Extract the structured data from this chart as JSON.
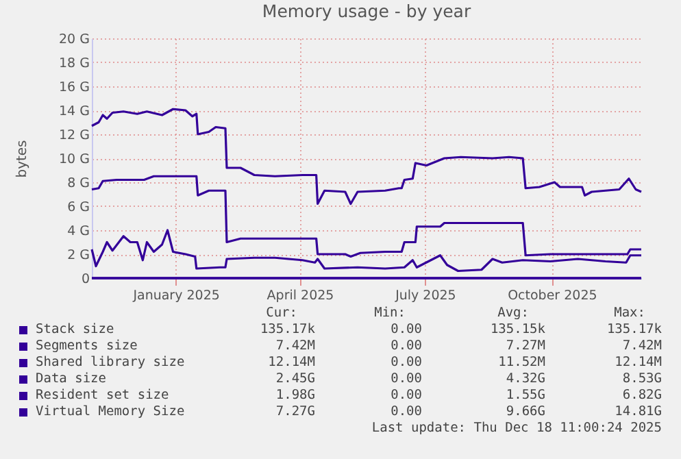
{
  "chart_data": {
    "type": "line",
    "title": "Memory usage - by year",
    "ylabel": "bytes",
    "xlim": [
      "2024-11-14",
      "2025-12-18"
    ],
    "xticks": [
      {
        "value": "2025-01-14",
        "label": "January 2025"
      },
      {
        "value": "2025-04-14",
        "label": "April 2025"
      },
      {
        "value": "2025-07-14",
        "label": "July 2025"
      },
      {
        "value": "2025-10-14",
        "label": "October 2025"
      }
    ],
    "ylim": [
      0,
      20
    ],
    "yticks": [
      0,
      {
        "value": 2,
        "label": "2 G"
      },
      {
        "value": 4,
        "label": "4 G"
      },
      {
        "value": 6,
        "label": "6 G"
      },
      {
        "value": 8,
        "label": "8 G"
      },
      {
        "value": 10,
        "label": "10 G"
      },
      {
        "value": 12,
        "label": "12 G"
      },
      {
        "value": 14,
        "label": "14 G"
      },
      {
        "value": 16,
        "label": "16 G"
      },
      {
        "value": 18,
        "label": "18 G"
      },
      {
        "value": 20,
        "label": "20 G"
      }
    ],
    "grid": true,
    "legend": "bottom",
    "series": [
      {
        "name": "Stack size",
        "color": "#330099",
        "x": [
          "2024-11-14",
          "2025-12-18"
        ],
        "values": [
          0,
          0
        ]
      },
      {
        "name": "Segments size",
        "color": "#330099",
        "x": [
          "2024-11-14",
          "2025-12-18"
        ],
        "values": [
          0,
          0
        ]
      },
      {
        "name": "Shared library size",
        "color": "#330099",
        "x": [
          "2024-11-14",
          "2025-12-18"
        ],
        "values": [
          0,
          0
        ]
      },
      {
        "name": "Data size",
        "color": "#330099",
        "x": [
          "2024-11-14",
          "2024-11-19",
          "2024-11-22",
          "2024-12-02",
          "2024-12-22",
          "2024-12-29",
          "2025-01-29",
          "2025-01-30",
          "2025-02-07",
          "2025-02-19",
          "2025-02-20",
          "2025-03-02",
          "2025-04-26",
          "2025-04-27",
          "2025-05-17",
          "2025-05-21",
          "2025-05-28",
          "2025-06-15",
          "2025-06-27",
          "2025-06-29",
          "2025-07-07",
          "2025-07-08",
          "2025-07-25",
          "2025-07-28",
          "2025-09-23",
          "2025-09-25",
          "2025-10-13",
          "2025-12-08",
          "2025-12-10",
          "2025-12-18"
        ],
        "values": [
          7.4,
          7.5,
          8.1,
          8.2,
          8.2,
          8.5,
          8.5,
          6.9,
          7.3,
          7.3,
          3.0,
          3.3,
          3.3,
          2.0,
          2.0,
          1.8,
          2.1,
          2.2,
          2.2,
          3.0,
          3.0,
          4.3,
          4.3,
          4.6,
          4.6,
          1.9,
          2.0,
          2.0,
          2.4,
          2.4
        ]
      },
      {
        "name": "Resident set size",
        "color": "#330099",
        "x": [
          "2024-11-14",
          "2024-11-17",
          "2024-11-22",
          "2024-11-25",
          "2024-11-29",
          "2024-12-07",
          "2024-12-12",
          "2024-12-17",
          "2024-12-21",
          "2024-12-24",
          "2024-12-29",
          "2025-01-04",
          "2025-01-08",
          "2025-01-12",
          "2025-01-21",
          "2025-01-28",
          "2025-01-29",
          "2025-02-15",
          "2025-02-19",
          "2025-02-20",
          "2025-03-12",
          "2025-03-27",
          "2025-04-16",
          "2025-04-25",
          "2025-04-27",
          "2025-05-02",
          "2025-05-26",
          "2025-06-15",
          "2025-06-29",
          "2025-07-05",
          "2025-07-08",
          "2025-07-25",
          "2025-07-30",
          "2025-08-07",
          "2025-08-24",
          "2025-09-01",
          "2025-09-08",
          "2025-09-23",
          "2025-10-13",
          "2025-11-02",
          "2025-11-22",
          "2025-12-07",
          "2025-12-10",
          "2025-12-18"
        ],
        "values": [
          2.4,
          1.0,
          2.2,
          3.0,
          2.3,
          3.5,
          3.0,
          3.0,
          1.5,
          3.0,
          2.2,
          2.8,
          4.0,
          2.2,
          2.0,
          1.8,
          0.8,
          0.9,
          0.9,
          1.6,
          1.7,
          1.7,
          1.5,
          1.3,
          1.6,
          0.8,
          0.9,
          0.8,
          0.9,
          1.5,
          0.9,
          1.9,
          1.1,
          0.6,
          0.7,
          1.6,
          1.3,
          1.5,
          1.4,
          1.6,
          1.4,
          1.3,
          1.9,
          1.9
        ]
      },
      {
        "name": "Virtual Memory Size",
        "color": "#330099",
        "x": [
          "2024-11-14",
          "2024-11-19",
          "2024-11-22",
          "2024-11-25",
          "2024-11-29",
          "2024-12-07",
          "2024-12-17",
          "2024-12-24",
          "2025-01-04",
          "2025-01-12",
          "2025-01-21",
          "2025-01-26",
          "2025-01-29",
          "2025-01-30",
          "2025-02-07",
          "2025-02-12",
          "2025-02-19",
          "2025-02-20",
          "2025-03-02",
          "2025-03-12",
          "2025-03-27",
          "2025-04-16",
          "2025-04-26",
          "2025-04-27",
          "2025-05-02",
          "2025-05-17",
          "2025-05-21",
          "2025-05-26",
          "2025-06-15",
          "2025-06-25",
          "2025-06-27",
          "2025-06-29",
          "2025-07-05",
          "2025-07-07",
          "2025-07-15",
          "2025-07-28",
          "2025-08-09",
          "2025-09-01",
          "2025-09-13",
          "2025-09-23",
          "2025-09-25",
          "2025-10-05",
          "2025-10-16",
          "2025-10-20",
          "2025-11-05",
          "2025-11-07",
          "2025-11-12",
          "2025-11-22",
          "2025-12-02",
          "2025-12-09",
          "2025-12-14",
          "2025-12-18"
        ],
        "values": [
          12.7,
          13.0,
          13.6,
          13.3,
          13.8,
          13.9,
          13.7,
          13.9,
          13.6,
          14.1,
          14.0,
          13.5,
          13.7,
          12.0,
          12.2,
          12.6,
          12.5,
          9.2,
          9.2,
          8.6,
          8.5,
          8.6,
          8.6,
          6.2,
          7.3,
          7.2,
          6.2,
          7.2,
          7.3,
          7.5,
          7.5,
          8.2,
          8.3,
          9.6,
          9.4,
          10.0,
          10.1,
          10.0,
          10.1,
          10.0,
          7.5,
          7.6,
          8.0,
          7.6,
          7.6,
          6.9,
          7.2,
          7.3,
          7.4,
          8.3,
          7.4,
          7.2
        ]
      }
    ],
    "annotations": [
      "Cur:",
      "Min:",
      "Avg:",
      "Max:",
      "135.17k",
      "0.00",
      "135.15k",
      "135.17k",
      "7.42M",
      "0.00",
      "7.27M",
      "7.42M",
      "12.14M",
      "0.00",
      "11.52M",
      "12.14M",
      "2.45G",
      "0.00",
      "4.32G",
      "8.53G",
      "1.98G",
      "0.00",
      "1.55G",
      "6.82G",
      "7.27G",
      "0.00",
      "9.66G",
      "14.81G",
      "Last update: Thu Dec 18 11:00:24 2025"
    ]
  }
}
